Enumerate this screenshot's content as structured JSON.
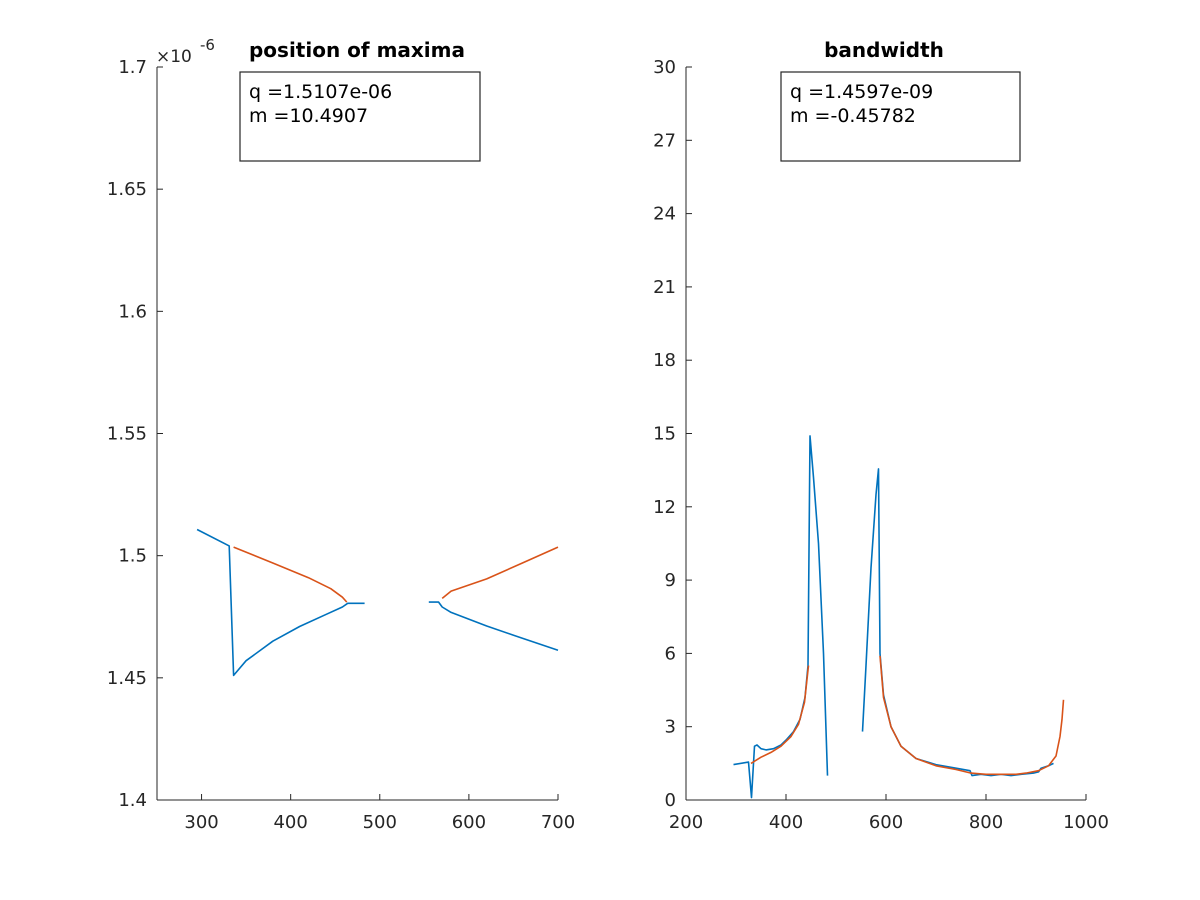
{
  "colors": {
    "blue": "#0072BD",
    "orange": "#D95319"
  },
  "chart_data": [
    {
      "type": "line",
      "title": "position of maxima",
      "xlabel": "",
      "ylabel": "",
      "xlim": [
        250,
        700
      ],
      "ylim": [
        1.4e-06,
        1.7e-06
      ],
      "y_exponent_label": "×10",
      "y_exponent_value": "-6",
      "xticks": [
        300,
        400,
        500,
        600,
        700
      ],
      "yticks": [
        1.4,
        1.45,
        1.5,
        1.55,
        1.6,
        1.65,
        1.7
      ],
      "ytick_labels": [
        "1.4",
        "1.45",
        "1.5",
        "1.55",
        "1.6",
        "1.65",
        "1.7"
      ],
      "grid": false,
      "annotation": [
        "q =1.5107e-06",
        "m =10.4907"
      ],
      "series": [
        {
          "color": "blue",
          "segments": [
            [
              [
                295,
                1.5107e-06
              ],
              [
                331,
                1.504e-06
              ],
              [
                336,
                1.451e-06
              ],
              [
                350,
                1.457e-06
              ],
              [
                380,
                1.465e-06
              ],
              [
                410,
                1.471e-06
              ],
              [
                440,
                1.476e-06
              ],
              [
                458,
                1.479e-06
              ],
              [
                464,
                1.4805e-06
              ],
              [
                483,
                1.4805e-06
              ]
            ],
            [
              [
                555,
                1.481e-06
              ],
              [
                566,
                1.481e-06
              ],
              [
                570,
                1.479e-06
              ],
              [
                580,
                1.4768e-06
              ],
              [
                620,
                1.4712e-06
              ],
              [
                660,
                1.4662e-06
              ],
              [
                700,
                1.4613e-06
              ]
            ]
          ]
        },
        {
          "color": "orange",
          "segments": [
            [
              [
                336,
                1.5035e-06
              ],
              [
                380,
                1.497e-06
              ],
              [
                420,
                1.491e-06
              ],
              [
                445,
                1.4865e-06
              ],
              [
                458,
                1.483e-06
              ],
              [
                463,
                1.481e-06
              ]
            ],
            [
              [
                570,
                1.4825e-06
              ],
              [
                580,
                1.4855e-06
              ],
              [
                620,
                1.4905e-06
              ],
              [
                660,
                1.497e-06
              ],
              [
                700,
                1.5035e-06
              ]
            ]
          ]
        }
      ]
    },
    {
      "type": "line",
      "title": "bandwidth",
      "xlabel": "",
      "ylabel": "",
      "xlim": [
        200,
        1000
      ],
      "ylim": [
        0,
        30
      ],
      "xticks": [
        200,
        400,
        600,
        800,
        1000
      ],
      "yticks": [
        0,
        3,
        6,
        9,
        12,
        15,
        18,
        21,
        24,
        27,
        30
      ],
      "ytick_labels": [
        "0",
        "3",
        "6",
        "9",
        "12",
        "15",
        "18",
        "21",
        "24",
        "27",
        "30"
      ],
      "grid": false,
      "annotation": [
        "q =1.4597e-09",
        "m =-0.45782"
      ],
      "series": [
        {
          "color": "blue",
          "segments": [
            [
              [
                295,
                1.45
              ],
              [
                325,
                1.55
              ],
              [
                331,
                0.1
              ],
              [
                337,
                2.2
              ],
              [
                342,
                2.25
              ],
              [
                350,
                2.1
              ],
              [
                360,
                2.05
              ],
              [
                375,
                2.1
              ],
              [
                390,
                2.25
              ],
              [
                400,
                2.45
              ],
              [
                415,
                2.8
              ],
              [
                428,
                3.3
              ],
              [
                438,
                4.2
              ],
              [
                444,
                5.5
              ],
              [
                448,
                14.9
              ],
              [
                455,
                13.2
              ],
              [
                465,
                10.5
              ],
              [
                475,
                6.0
              ],
              [
                483,
                1.0
              ]
            ],
            [
              [
                553,
                2.8
              ],
              [
                560,
                5.5
              ],
              [
                570,
                9.5
              ],
              [
                580,
                12.5
              ],
              [
                585,
                13.55
              ],
              [
                588,
                6.0
              ],
              [
                595,
                4.3
              ],
              [
                610,
                3.0
              ],
              [
                630,
                2.2
              ],
              [
                660,
                1.7
              ],
              [
                700,
                1.45
              ],
              [
                740,
                1.3
              ],
              [
                768,
                1.2
              ],
              [
                772,
                1.0
              ],
              [
                790,
                1.05
              ],
              [
                810,
                1.0
              ],
              [
                830,
                1.05
              ],
              [
                850,
                1.0
              ],
              [
                870,
                1.05
              ],
              [
                895,
                1.1
              ],
              [
                905,
                1.15
              ],
              [
                910,
                1.3
              ],
              [
                925,
                1.4
              ],
              [
                935,
                1.5
              ]
            ]
          ]
        },
        {
          "color": "orange",
          "segments": [
            [
              [
                330,
                1.5
              ],
              [
                350,
                1.75
              ],
              [
                370,
                1.95
              ],
              [
                390,
                2.2
              ],
              [
                410,
                2.6
              ],
              [
                425,
                3.1
              ],
              [
                437,
                4.0
              ],
              [
                445,
                5.5
              ]
            ],
            [
              [
                588,
                5.9
              ],
              [
                595,
                4.2
              ],
              [
                610,
                3.0
              ],
              [
                630,
                2.2
              ],
              [
                660,
                1.7
              ],
              [
                700,
                1.4
              ],
              [
                740,
                1.25
              ],
              [
                770,
                1.1
              ],
              [
                800,
                1.05
              ],
              [
                830,
                1.05
              ],
              [
                860,
                1.05
              ],
              [
                880,
                1.1
              ],
              [
                905,
                1.2
              ],
              [
                925,
                1.4
              ],
              [
                940,
                1.8
              ],
              [
                948,
                2.6
              ],
              [
                952,
                3.3
              ],
              [
                955,
                4.1
              ]
            ]
          ]
        }
      ]
    }
  ]
}
